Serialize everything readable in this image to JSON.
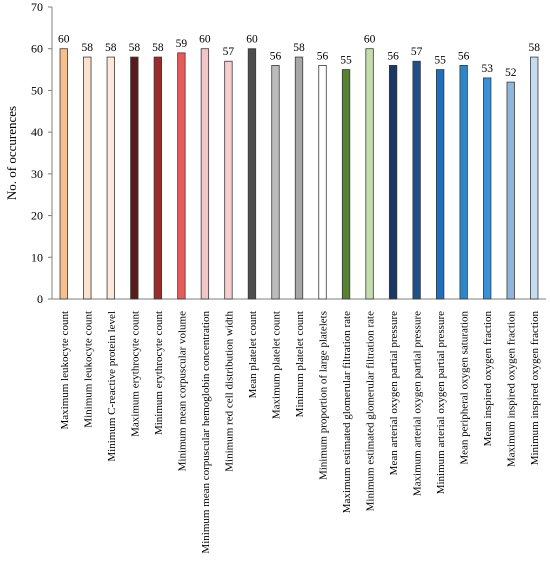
{
  "chart_data": {
    "type": "bar",
    "ylabel": "No. of occurences",
    "xlabel": "",
    "ylim": [
      0,
      70
    ],
    "yticks": [
      0,
      10,
      20,
      30,
      40,
      50,
      60,
      70
    ],
    "grid": false,
    "legend": "none",
    "categories": [
      "Maximum leukocyte count",
      "Minimum leukocyte count",
      "Minimum C-reactive protein level",
      "Maximum erythrocyte count",
      "Minimum erythrocyte count",
      "Minimum mean corpuscular volume",
      "Minimum mean corpuscular hemoglobin concentration",
      "Minimum red cell distribution width",
      "Mean platelet count",
      "Maximum platelet count",
      "Minimum platelet count",
      "Minimum proportion of large platelets",
      "Maximum estimated glomerular filtration rate",
      "Minimum estimated glomerular filtration rate",
      "Mean arterial oxygen partial pressure",
      "Maximum arterial oxygen partial pressure",
      "Minimum arterial oxygen partial pressure",
      "Mean peripheral oxygen saturation",
      "Mean inspired oxygen fraction",
      "Maximum inspired oxygen fraction",
      "Minimum inspired oxygen fraction"
    ],
    "values": [
      60,
      58,
      58,
      58,
      58,
      59,
      60,
      57,
      60,
      56,
      58,
      56,
      55,
      60,
      56,
      57,
      55,
      56,
      53,
      52,
      58
    ],
    "data_labels": [
      "60",
      "58",
      "58",
      "58",
      "58",
      "59",
      "60",
      "57",
      "60",
      "56",
      "58",
      "56",
      "55",
      "60",
      "56",
      "57",
      "55",
      "56",
      "53",
      "52",
      "58"
    ],
    "tick_labels": [
      "0",
      "10",
      "20",
      "30",
      "40",
      "50",
      "60",
      "70"
    ],
    "colors": [
      "#f6c08e",
      "#fbe2cf",
      "#fde9dc",
      "#5a1a1a",
      "#9b2c2c",
      "#e85a5a",
      "#f2c6c6",
      "#f9cdcd",
      "#4d4d4d",
      "#bcbcbc",
      "#a6a6a6",
      "#ffffff",
      "#548235",
      "#c5dcae",
      "#1b3864",
      "#1f4e8c",
      "#1f6fbf",
      "#2e86c8",
      "#3a8fd9",
      "#8fb6dd",
      "#c5dcf0"
    ],
    "bar_edge_color": "#3a3a3a"
  }
}
